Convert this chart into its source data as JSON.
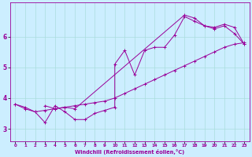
{
  "xlabel": "Windchill (Refroidissement éolien,°C)",
  "bg_color": "#cceeff",
  "grid_color": "#aadddd",
  "line_color": "#990099",
  "xlim": [
    -0.5,
    23.5
  ],
  "ylim": [
    2.6,
    7.1
  ],
  "xticks": [
    0,
    1,
    2,
    3,
    4,
    5,
    6,
    7,
    8,
    9,
    10,
    11,
    12,
    13,
    14,
    15,
    16,
    17,
    18,
    19,
    20,
    21,
    22,
    23
  ],
  "yticks": [
    3,
    4,
    5,
    6
  ],
  "line1": [
    [
      0,
      3.8
    ],
    [
      1,
      3.7
    ],
    [
      2,
      3.55
    ],
    [
      3,
      3.6
    ],
    [
      4,
      3.65
    ],
    [
      5,
      3.7
    ],
    [
      6,
      3.75
    ],
    [
      7,
      3.8
    ],
    [
      8,
      3.85
    ],
    [
      9,
      3.9
    ],
    [
      10,
      4.0
    ],
    [
      11,
      4.15
    ],
    [
      12,
      4.3
    ],
    [
      13,
      4.45
    ],
    [
      14,
      4.6
    ],
    [
      15,
      4.75
    ],
    [
      16,
      4.9
    ],
    [
      17,
      5.05
    ],
    [
      18,
      5.2
    ],
    [
      19,
      5.35
    ],
    [
      20,
      5.5
    ],
    [
      21,
      5.65
    ],
    [
      22,
      5.75
    ],
    [
      23,
      5.8
    ]
  ],
  "line2": [
    [
      0,
      3.8
    ],
    [
      1,
      3.65
    ],
    [
      2,
      3.55
    ],
    [
      3,
      3.2
    ],
    [
      4,
      3.75
    ],
    [
      5,
      3.55
    ],
    [
      6,
      3.3
    ],
    [
      7,
      3.3
    ],
    [
      8,
      3.5
    ],
    [
      9,
      3.6
    ],
    [
      10,
      3.7
    ],
    [
      10,
      5.1
    ],
    [
      11,
      5.55
    ],
    [
      12,
      4.75
    ],
    [
      13,
      5.55
    ],
    [
      14,
      5.65
    ],
    [
      15,
      5.65
    ],
    [
      16,
      6.05
    ],
    [
      17,
      6.65
    ],
    [
      18,
      6.5
    ],
    [
      19,
      6.35
    ],
    [
      20,
      6.3
    ],
    [
      21,
      6.4
    ],
    [
      22,
      6.3
    ],
    [
      23,
      5.75
    ]
  ],
  "line3": [
    [
      3,
      3.75
    ],
    [
      4,
      3.65
    ],
    [
      5,
      3.7
    ],
    [
      6,
      3.65
    ],
    [
      17,
      6.7
    ],
    [
      18,
      6.6
    ],
    [
      19,
      6.35
    ],
    [
      20,
      6.25
    ],
    [
      21,
      6.35
    ],
    [
      22,
      6.1
    ],
    [
      23,
      5.75
    ]
  ]
}
